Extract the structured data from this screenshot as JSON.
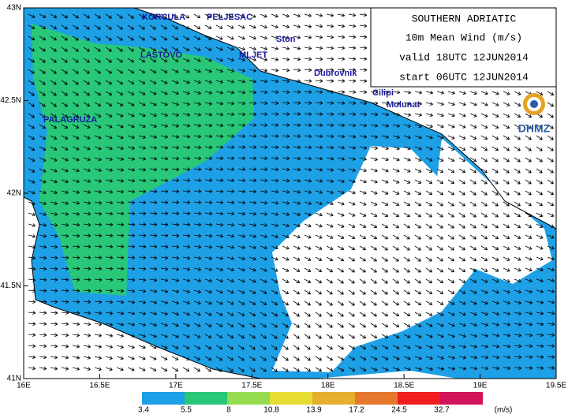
{
  "title_lines": [
    "SOUTHERN ADRIATIC",
    "10m Mean Wind (m/s)",
    "valid 18UTC 12JUN2014",
    "start 06UTC 12JUN2014"
  ],
  "logo": "DHMZ",
  "places": [
    "KORCULA",
    "PELJESAC",
    "Ston",
    "MLJET",
    "LASTOVO",
    "Dubrovnik",
    "Cilipi",
    "Molunat",
    "PALAGRUZA"
  ],
  "lat_labels": [
    "43N",
    "42.5N",
    "42N",
    "41.5N",
    "41N"
  ],
  "lon_labels": [
    "16E",
    "16.5E",
    "17E",
    "17.5E",
    "18E",
    "18.5E",
    "19E",
    "19.5E"
  ],
  "colorbar": {
    "labels": [
      "3.4",
      "5.5",
      "8",
      "10.8",
      "13.9",
      "17.2",
      "24.5",
      "32.7"
    ],
    "unit": "(m/s)"
  }
}
